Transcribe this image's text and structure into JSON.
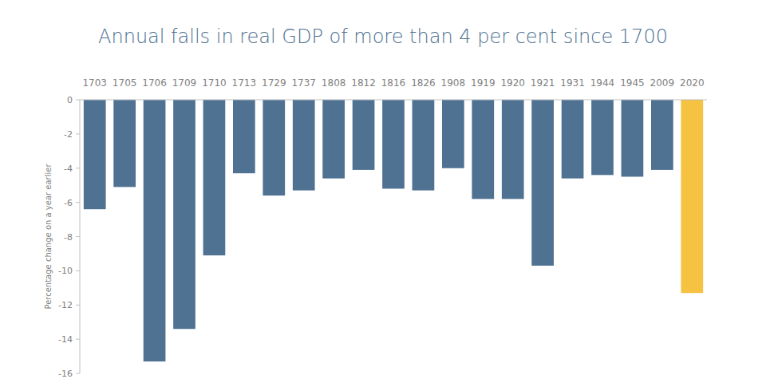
{
  "chart_data": {
    "type": "bar",
    "title": "Annual falls in real GDP of more than 4 per cent since 1700",
    "ylabel": "Percentage change on a year earlier",
    "categories": [
      "1703",
      "1705",
      "1706",
      "1709",
      "1710",
      "1713",
      "1729",
      "1737",
      "1808",
      "1812",
      "1816",
      "1826",
      "1908",
      "1919",
      "1920",
      "1921",
      "1931",
      "1944",
      "1945",
      "2009",
      "2020"
    ],
    "values": [
      -6.4,
      -5.1,
      -15.3,
      -13.4,
      -9.1,
      -4.3,
      -5.6,
      -5.3,
      -4.6,
      -4.1,
      -5.2,
      -5.3,
      -4.0,
      -5.8,
      -5.8,
      -9.7,
      -4.6,
      -4.4,
      -4.5,
      -4.1,
      -11.3
    ],
    "colors": [
      "#4f7192",
      "#4f7192",
      "#4f7192",
      "#4f7192",
      "#4f7192",
      "#4f7192",
      "#4f7192",
      "#4f7192",
      "#4f7192",
      "#4f7192",
      "#4f7192",
      "#4f7192",
      "#4f7192",
      "#4f7192",
      "#4f7192",
      "#4f7192",
      "#4f7192",
      "#4f7192",
      "#4f7192",
      "#4f7192",
      "#f5c242"
    ],
    "ylim": [
      -16,
      0
    ],
    "yticks": [
      0,
      -2,
      -4,
      -6,
      -8,
      -10,
      -12,
      -14,
      -16
    ],
    "grid": false
  }
}
